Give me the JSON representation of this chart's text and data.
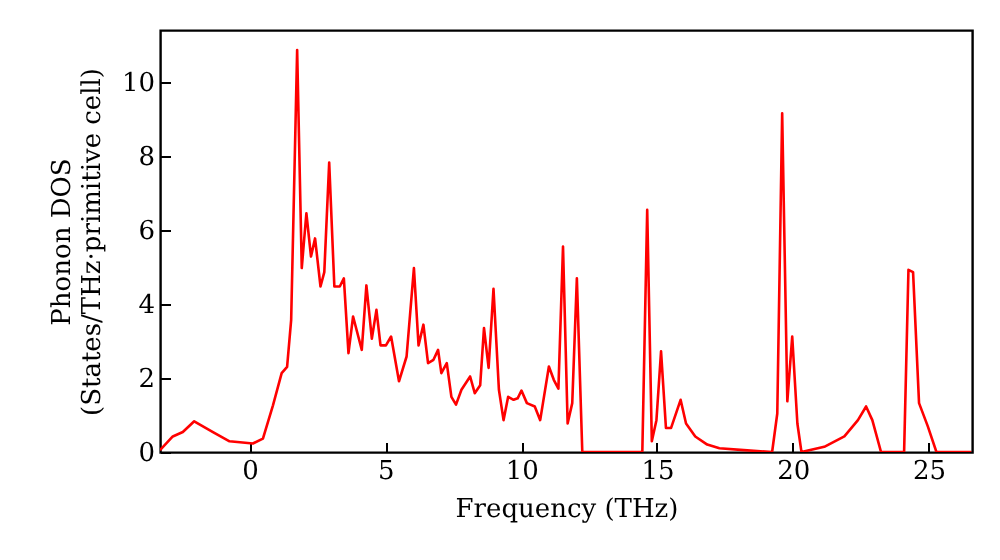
{
  "chart_data": {
    "type": "line",
    "xlabel": "Frequency (THz)",
    "ylabel": "Phonon DOS\n(States/THz·primitive cell)",
    "xlim": [
      -3.3,
      26.6
    ],
    "ylim": [
      0,
      11.4
    ],
    "xticks": [
      0,
      5,
      10,
      15,
      20,
      25
    ],
    "yticks": [
      0,
      2,
      4,
      6,
      8,
      10
    ],
    "grid": false,
    "marker": "none",
    "line_style": "solid",
    "x": [
      -3.3,
      -2.83,
      -2.46,
      -2.04,
      -1.35,
      -0.74,
      0.12,
      0.49,
      0.86,
      1.18,
      1.38,
      1.53,
      1.75,
      1.92,
      2.09,
      2.26,
      2.41,
      2.61,
      2.75,
      2.93,
      3.12,
      3.32,
      3.47,
      3.64,
      3.81,
      4.13,
      4.3,
      4.5,
      4.67,
      4.82,
      5.02,
      5.21,
      5.5,
      5.78,
      6.05,
      6.22,
      6.4,
      6.57,
      6.77,
      6.94,
      7.06,
      7.26,
      7.43,
      7.6,
      7.8,
      8.12,
      8.29,
      8.49,
      8.63,
      8.8,
      8.98,
      9.18,
      9.35,
      9.52,
      9.72,
      9.87,
      10.01,
      10.21,
      10.5,
      10.7,
      11.02,
      11.2,
      11.37,
      11.54,
      11.71,
      11.88,
      12.05,
      12.25,
      14.46,
      14.64,
      14.81,
      14.98,
      15.15,
      15.33,
      15.52,
      15.87,
      16.07,
      16.41,
      16.85,
      17.3,
      18.2,
      19.24,
      19.43,
      19.61,
      19.8,
      19.98,
      20.17,
      20.32,
      21.16,
      21.9,
      22.4,
      22.7,
      22.93,
      23.25,
      24.1,
      24.26,
      24.43,
      24.65,
      24.97,
      25.29,
      26.57
    ],
    "series": [
      {
        "color": "#ff0000",
        "values": [
          0.05,
          0.42,
          0.54,
          0.83,
          0.54,
          0.29,
          0.23,
          0.36,
          1.26,
          2.13,
          2.3,
          3.57,
          10.86,
          4.97,
          6.45,
          5.28,
          5.77,
          4.47,
          4.86,
          7.82,
          4.47,
          4.47,
          4.69,
          2.67,
          3.66,
          2.76,
          4.5,
          3.06,
          3.84,
          2.88,
          2.88,
          3.12,
          1.91,
          2.58,
          4.97,
          2.88,
          3.44,
          2.4,
          2.49,
          2.76,
          2.13,
          2.4,
          1.49,
          1.28,
          1.68,
          2.04,
          1.59,
          1.8,
          3.35,
          2.27,
          4.41,
          1.68,
          0.86,
          1.49,
          1.41,
          1.45,
          1.66,
          1.32,
          1.23,
          0.86,
          2.31,
          1.95,
          1.71,
          5.55,
          0.77,
          1.32,
          4.69,
          0,
          0,
          6.54,
          0.29,
          0.86,
          2.72,
          0.65,
          0.65,
          1.41,
          0.77,
          0.42,
          0.2,
          0.1,
          0.05,
          0,
          1.04,
          9.15,
          1.37,
          3.12,
          0.77,
          0,
          0.14,
          0.42,
          0.86,
          1.23,
          0.86,
          0,
          0,
          4.92,
          4.86,
          1.32,
          0.7,
          0,
          0
        ]
      }
    ]
  }
}
